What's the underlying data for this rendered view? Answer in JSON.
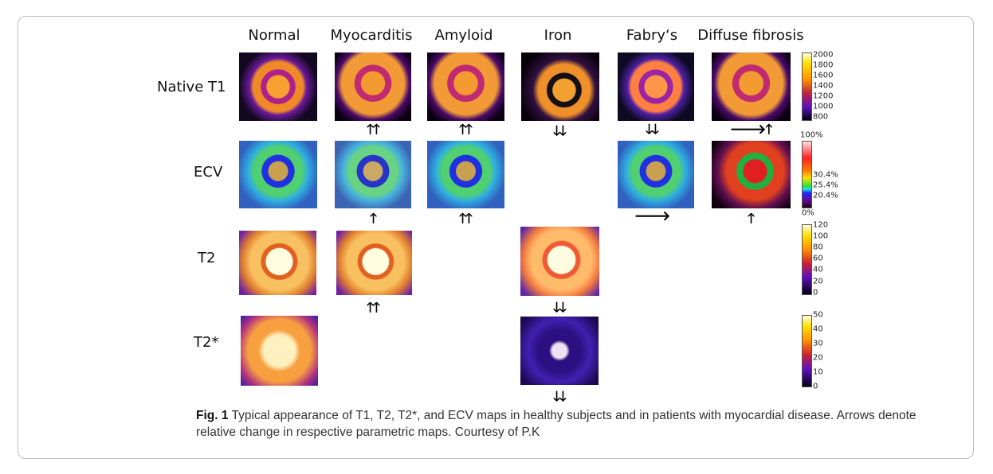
{
  "columns": [
    "Normal",
    "Myocarditis",
    "Amyloid",
    "Iron",
    "Fabry‘s",
    "Diffuse fibrosis"
  ],
  "rows": [
    "Native T1",
    "ECV",
    "T2",
    "T2*"
  ],
  "arrows": {
    "native_t1": {
      "myocarditis": "🡑🡑",
      "amyloid": "🡑🡑",
      "iron": "🡓🡓",
      "fabrys": "🡓🡓",
      "diffuse_fibrosis": "🡒🡑"
    },
    "ecv": {
      "myocarditis": "🡑",
      "amyloid": "🡑🡑",
      "fabrys": "🡒",
      "diffuse_fibrosis": "🡑"
    },
    "t2": {
      "myocarditis": "🡑🡑",
      "iron": "🡓🡓"
    },
    "t2star": {
      "iron": "🡓🡓"
    }
  },
  "colorbars": {
    "native_t1": [
      "2000",
      "1800",
      "1600",
      "1400",
      "1200",
      "1000",
      "800"
    ],
    "ecv": {
      "top": "100%",
      "bottom": "0%",
      "marks": [
        "30.4%",
        "25.4%",
        "20.4%"
      ]
    },
    "t2": [
      "120",
      "100",
      "80",
      "60",
      "40",
      "20",
      "0"
    ],
    "t2star": [
      "50",
      "40",
      "30",
      "20",
      "10",
      "0"
    ]
  },
  "caption": {
    "label": "Fig. 1",
    "text": " Typical appearance of T1, T2, T2*, and ECV maps in healthy subjects and in patients with myocardial disease. Arrows denote relative change in respective parametric maps. Courtesy of P.K"
  }
}
